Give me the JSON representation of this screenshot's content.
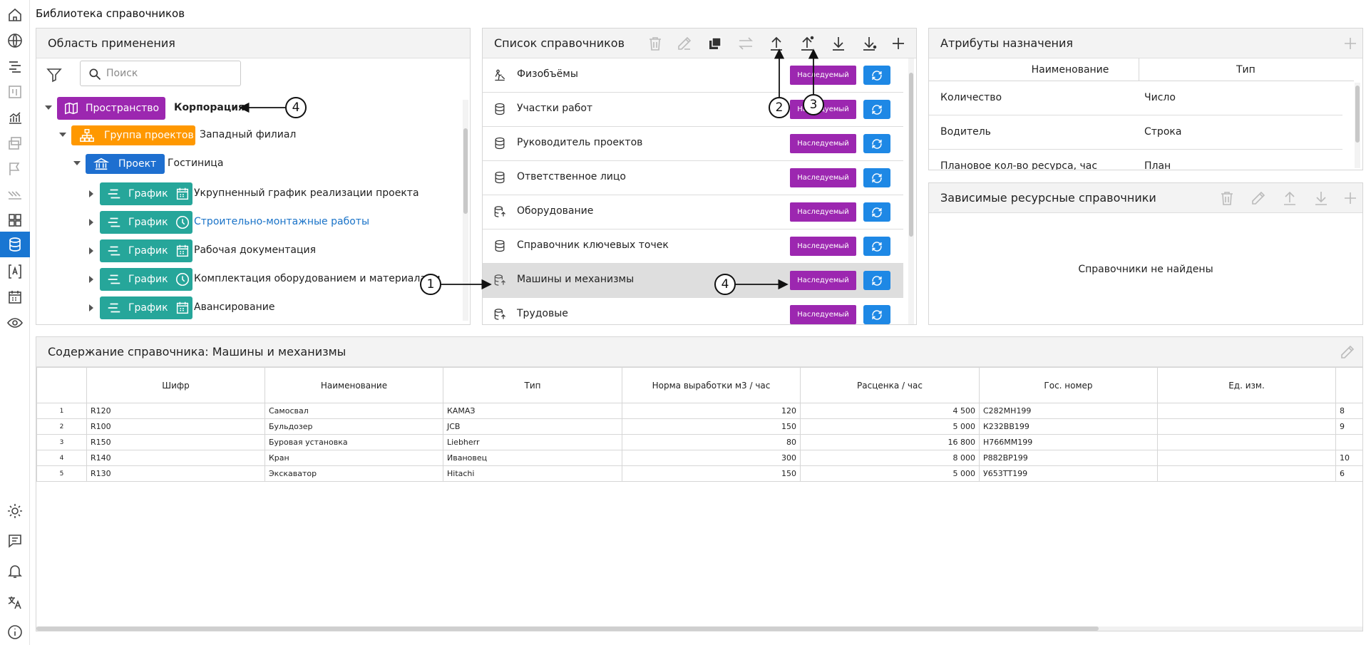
{
  "app": {
    "title": "Библиотека справочников"
  },
  "rail": {
    "top_icons": [
      "home-icon",
      "globe-icon",
      "gantt-icon",
      "board-icon",
      "chart-icon",
      "windows-icon",
      "flag-icon",
      "stripes-icon",
      "grid-icon",
      "database-icon",
      "text-frame-icon",
      "calendar-icon",
      "eye-icon"
    ],
    "bottom_icons": [
      "sun-icon",
      "chat-icon",
      "bell-icon",
      "translate-icon",
      "info-icon"
    ],
    "active": "database-icon",
    "accent": "#1976d2"
  },
  "scope": {
    "title": "Область применения",
    "search_placeholder": "Поиск",
    "tree": [
      {
        "tag": "Пространство",
        "name": "Корпорация",
        "color": "#9c27b0",
        "icon": "map-icon"
      },
      {
        "tag": "Группа проектов",
        "name": "Западный филиал",
        "color": "#ff9800",
        "icon": "hierarchy-icon"
      },
      {
        "tag": "Проект",
        "name": "Гостиница",
        "color": "#1e6fd0",
        "icon": "bank-icon"
      },
      {
        "tag": "График",
        "name": "Укрупненный график реализации проекта",
        "color": "#26a69a",
        "icon": "calendar-icon"
      },
      {
        "tag": "График",
        "name": "Строительно-монтажные работы",
        "color": "#26a69a",
        "icon": "clock-icon"
      },
      {
        "tag": "График",
        "name": "Рабочая документация",
        "color": "#26a69a",
        "icon": "calendar-icon"
      },
      {
        "tag": "График",
        "name": "Комплектация оборудованием и материалами",
        "color": "#26a69a",
        "icon": "clock-icon"
      },
      {
        "tag": "График",
        "name": "Авансирование",
        "color": "#26a69a",
        "icon": "calendar-icon"
      }
    ]
  },
  "list": {
    "title": "Список справочников",
    "toolbar": [
      "delete-icon",
      "edit-icon",
      "copy-icon",
      "swap-icon",
      "upload-icon",
      "upload-star-icon",
      "download-icon",
      "download-star-icon",
      "plus-icon"
    ],
    "inherited_label": "Наследуемый",
    "inherited_color": "#9c27b0",
    "sync_color": "#1e88e5",
    "items": [
      {
        "name": "Физобъёмы",
        "icon": "worker-icon"
      },
      {
        "name": "Участки работ",
        "icon": "database-icon"
      },
      {
        "name": "Руководитель проектов",
        "icon": "database-icon"
      },
      {
        "name": "Ответственное лицо",
        "icon": "database-icon"
      },
      {
        "name": "Оборудование",
        "icon": "database-link-icon"
      },
      {
        "name": "Справочник ключевых точек",
        "icon": "database-icon"
      },
      {
        "name": "Машины и механизмы",
        "icon": "database-link-icon"
      },
      {
        "name": "Трудовые",
        "icon": "database-link-icon"
      }
    ]
  },
  "attrs": {
    "title": "Атрибуты назначения",
    "col_name": "Наименование",
    "col_type": "Тип",
    "rows": [
      {
        "name": "Количество",
        "type": "Число"
      },
      {
        "name": "Водитель",
        "type": "Строка"
      },
      {
        "name": "Плановое кол-во ресурса, час",
        "type": "План"
      }
    ]
  },
  "deps": {
    "title": "Зависимые ресурсные справочники",
    "empty": "Справочники не найдены"
  },
  "content": {
    "title": "Содержание справочника: Машины и механизмы",
    "columns": [
      "",
      "Шифр",
      "Наименование",
      "Тип",
      "Норма выработки м3 / час",
      "Расценка / час",
      "Гос. номер",
      "Ед. изм.",
      ""
    ],
    "rows": [
      [
        "1",
        "R120",
        "Самосвал",
        "КАМАЗ",
        "120",
        "4 500",
        "С282МН199",
        "",
        "8"
      ],
      [
        "2",
        "R100",
        "Бульдозер",
        "JCB",
        "150",
        "5 000",
        "К232ВВ199",
        "",
        "9"
      ],
      [
        "3",
        "R150",
        "Буровая установка",
        "Liebherr",
        "80",
        "16 800",
        "Н766ММ199",
        "",
        ""
      ],
      [
        "4",
        "R140",
        "Кран",
        "Ивановец",
        "300",
        "8 000",
        "Р882ВР199",
        "",
        "10"
      ],
      [
        "5",
        "R130",
        "Экскаватор",
        "Hitachi",
        "150",
        "5 000",
        "У653ТТ199",
        "",
        "6"
      ]
    ]
  },
  "callouts": {
    "c1": "1",
    "c2": "2",
    "c3": "3",
    "c4a": "4",
    "c4b": "4"
  }
}
